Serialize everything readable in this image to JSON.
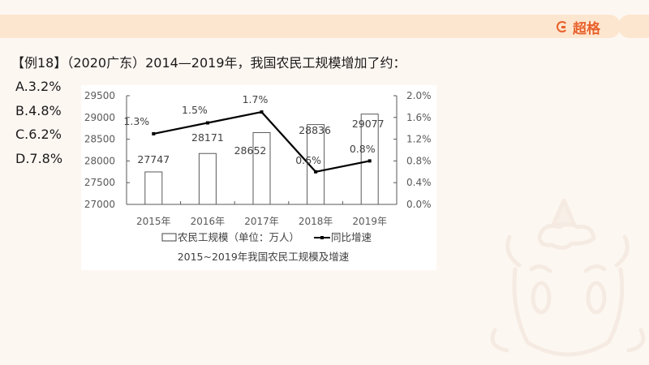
{
  "header": {
    "brand_name": "超格",
    "brand_icon": "g-logo-icon",
    "accent_color": "#e8612c",
    "bar_color": "#fde6cf"
  },
  "question": {
    "text": "【例18】（2020广东）2014—2019年，我国农民工规模增加了约：",
    "options": [
      {
        "label": "A.3.2%"
      },
      {
        "label": "B.4.8%"
      },
      {
        "label": "C.6.2%"
      },
      {
        "label": "D.7.8%"
      }
    ]
  },
  "chart_data": {
    "type": "bar+line",
    "title": "2015~2019年我国农民工规模及增速",
    "categories": [
      "2015年",
      "2016年",
      "2017年",
      "2018年",
      "2019年"
    ],
    "series": [
      {
        "name": "农民工规模（单位：万人）",
        "type": "bar",
        "axis": "left",
        "values": [
          27747,
          28171,
          28652,
          28836,
          29077
        ],
        "labels": [
          "27747",
          "28171",
          "28652",
          "28836",
          "29077"
        ]
      },
      {
        "name": "同比增速",
        "type": "line",
        "axis": "right",
        "values": [
          1.3,
          1.5,
          1.7,
          0.6,
          0.8
        ],
        "labels": [
          "1.3%",
          "1.5%",
          "1.7%",
          "0.6%",
          "0.8%"
        ]
      }
    ],
    "left_axis": {
      "ylim": [
        27000,
        29500
      ],
      "ticks": [
        "29500",
        "29000",
        "28500",
        "28000",
        "27500",
        "27000"
      ]
    },
    "right_axis": {
      "ylim": [
        0.0,
        2.0
      ],
      "ticks": [
        "2.0%",
        "1.6%",
        "1.2%",
        "0.8%",
        "0.4%",
        "0.0%"
      ]
    },
    "legend": {
      "position": "bottom",
      "items": [
        "农民工规模（单位：万人）",
        "同比增速"
      ]
    },
    "grid": false
  }
}
